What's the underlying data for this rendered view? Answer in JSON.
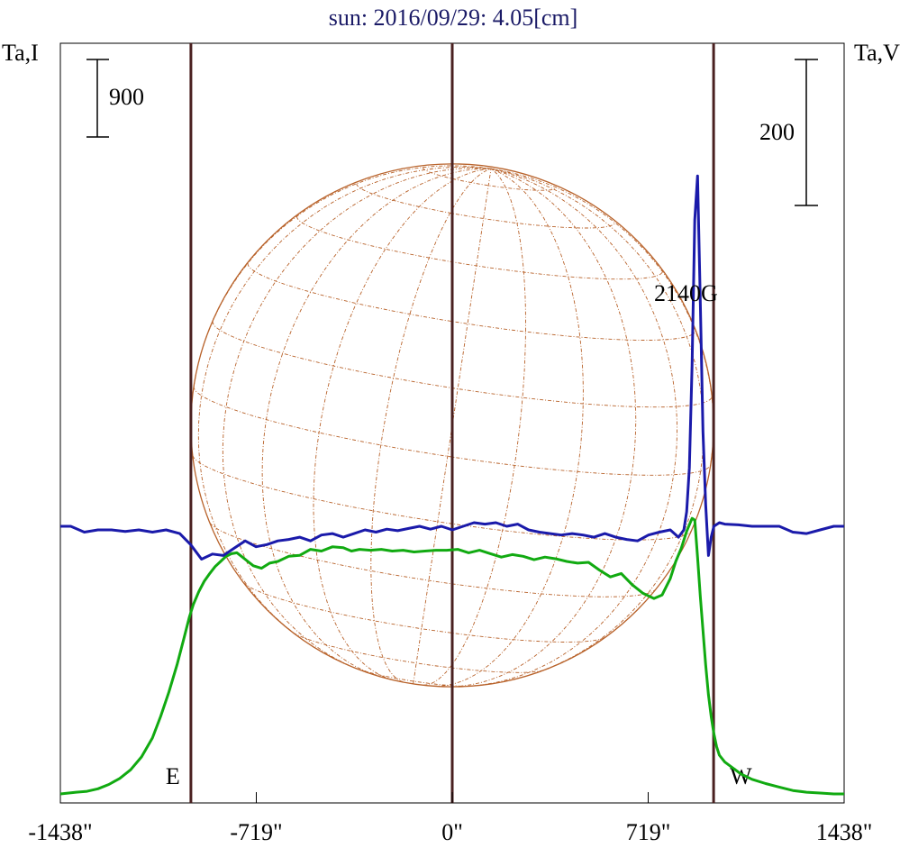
{
  "chart_data": {
    "type": "line",
    "title": "sun: 2016/09/29: 4.05[cm]",
    "left_axis_label": "Ta,I",
    "right_axis_label": "Ta,V",
    "left_scale_bar": "900",
    "right_scale_bar": "200",
    "x_ticks": [
      {
        "value": -1438,
        "label": "-1438\""
      },
      {
        "value": -719,
        "label": "-719\""
      },
      {
        "value": 0,
        "label": "0\""
      },
      {
        "value": 719,
        "label": "719\""
      },
      {
        "value": 1438,
        "label": "1438\""
      }
    ],
    "xlim": [
      -1438,
      1438
    ],
    "limb_markers": [
      {
        "x": -959,
        "label": "E"
      },
      {
        "x": 0,
        "label": ""
      },
      {
        "x": 959,
        "label": "W"
      }
    ],
    "annotations": [
      {
        "text": "2140G",
        "x": 890
      }
    ],
    "solar_disk": {
      "radius_arcsec": 959,
      "grid": true
    },
    "series": [
      {
        "name": "I",
        "color": "#11aa11",
        "x": [
          -1438,
          -1380,
          -1340,
          -1300,
          -1260,
          -1220,
          -1180,
          -1140,
          -1100,
          -1070,
          -1040,
          -1010,
          -985,
          -965,
          -950,
          -930,
          -910,
          -890,
          -870,
          -850,
          -830,
          -810,
          -790,
          -770,
          -750,
          -730,
          -700,
          -670,
          -640,
          -600,
          -560,
          -520,
          -480,
          -440,
          -400,
          -370,
          -340,
          -300,
          -260,
          -220,
          -180,
          -140,
          -100,
          -60,
          -20,
          20,
          60,
          100,
          140,
          180,
          220,
          260,
          300,
          340,
          380,
          420,
          460,
          500,
          540,
          580,
          620,
          660,
          700,
          740,
          770,
          800,
          820,
          840,
          860,
          880,
          890,
          900,
          910,
          920,
          930,
          940,
          950,
          960,
          970,
          980,
          1000,
          1030,
          1060,
          1100,
          1150,
          1200,
          1250,
          1300,
          1350,
          1400,
          1438
        ],
        "y": [
          0,
          20,
          30,
          60,
          110,
          180,
          280,
          430,
          650,
          900,
          1180,
          1500,
          1800,
          2050,
          2200,
          2350,
          2470,
          2560,
          2640,
          2700,
          2760,
          2790,
          2800,
          2750,
          2700,
          2650,
          2620,
          2680,
          2700,
          2760,
          2770,
          2840,
          2820,
          2870,
          2860,
          2820,
          2840,
          2830,
          2840,
          2820,
          2830,
          2810,
          2820,
          2830,
          2830,
          2840,
          2800,
          2830,
          2790,
          2750,
          2780,
          2760,
          2720,
          2750,
          2730,
          2700,
          2680,
          2690,
          2600,
          2520,
          2560,
          2430,
          2330,
          2270,
          2310,
          2500,
          2700,
          2850,
          3050,
          3200,
          3180,
          2750,
          2300,
          1900,
          1500,
          1150,
          900,
          700,
          550,
          450,
          370,
          300,
          230,
          170,
          120,
          80,
          40,
          20,
          10,
          0,
          0
        ]
      },
      {
        "name": "V",
        "color": "#1a1aaa",
        "x": [
          -1438,
          -1400,
          -1350,
          -1300,
          -1250,
          -1200,
          -1150,
          -1100,
          -1050,
          -1000,
          -960,
          -920,
          -880,
          -840,
          -800,
          -760,
          -720,
          -680,
          -640,
          -600,
          -560,
          -520,
          -480,
          -440,
          -400,
          -360,
          -320,
          -280,
          -240,
          -200,
          -160,
          -120,
          -80,
          -40,
          0,
          40,
          80,
          120,
          160,
          200,
          240,
          280,
          320,
          360,
          400,
          440,
          480,
          520,
          560,
          600,
          640,
          680,
          720,
          760,
          800,
          830,
          850,
          860,
          870,
          880,
          890,
          900,
          910,
          920,
          930,
          940,
          950,
          960,
          980,
          1000,
          1050,
          1100,
          1150,
          1200,
          1250,
          1300,
          1350,
          1400,
          1438
        ],
        "y": [
          0,
          0,
          -8,
          -5,
          -5,
          -7,
          -5,
          -8,
          -5,
          -10,
          -25,
          -45,
          -38,
          -40,
          -30,
          -20,
          -28,
          -25,
          -20,
          -18,
          -15,
          -20,
          -12,
          -10,
          -15,
          -10,
          -5,
          -8,
          -4,
          -6,
          -3,
          0,
          -4,
          0,
          -5,
          0,
          5,
          3,
          5,
          0,
          3,
          -5,
          -8,
          -10,
          -12,
          -10,
          -12,
          -15,
          -10,
          -15,
          -18,
          -20,
          -12,
          -8,
          -5,
          -15,
          -5,
          20,
          80,
          220,
          420,
          480,
          310,
          130,
          30,
          -40,
          -15,
          0,
          5,
          3,
          2,
          0,
          0,
          0,
          -8,
          -10,
          -5,
          0,
          0
        ]
      }
    ]
  }
}
